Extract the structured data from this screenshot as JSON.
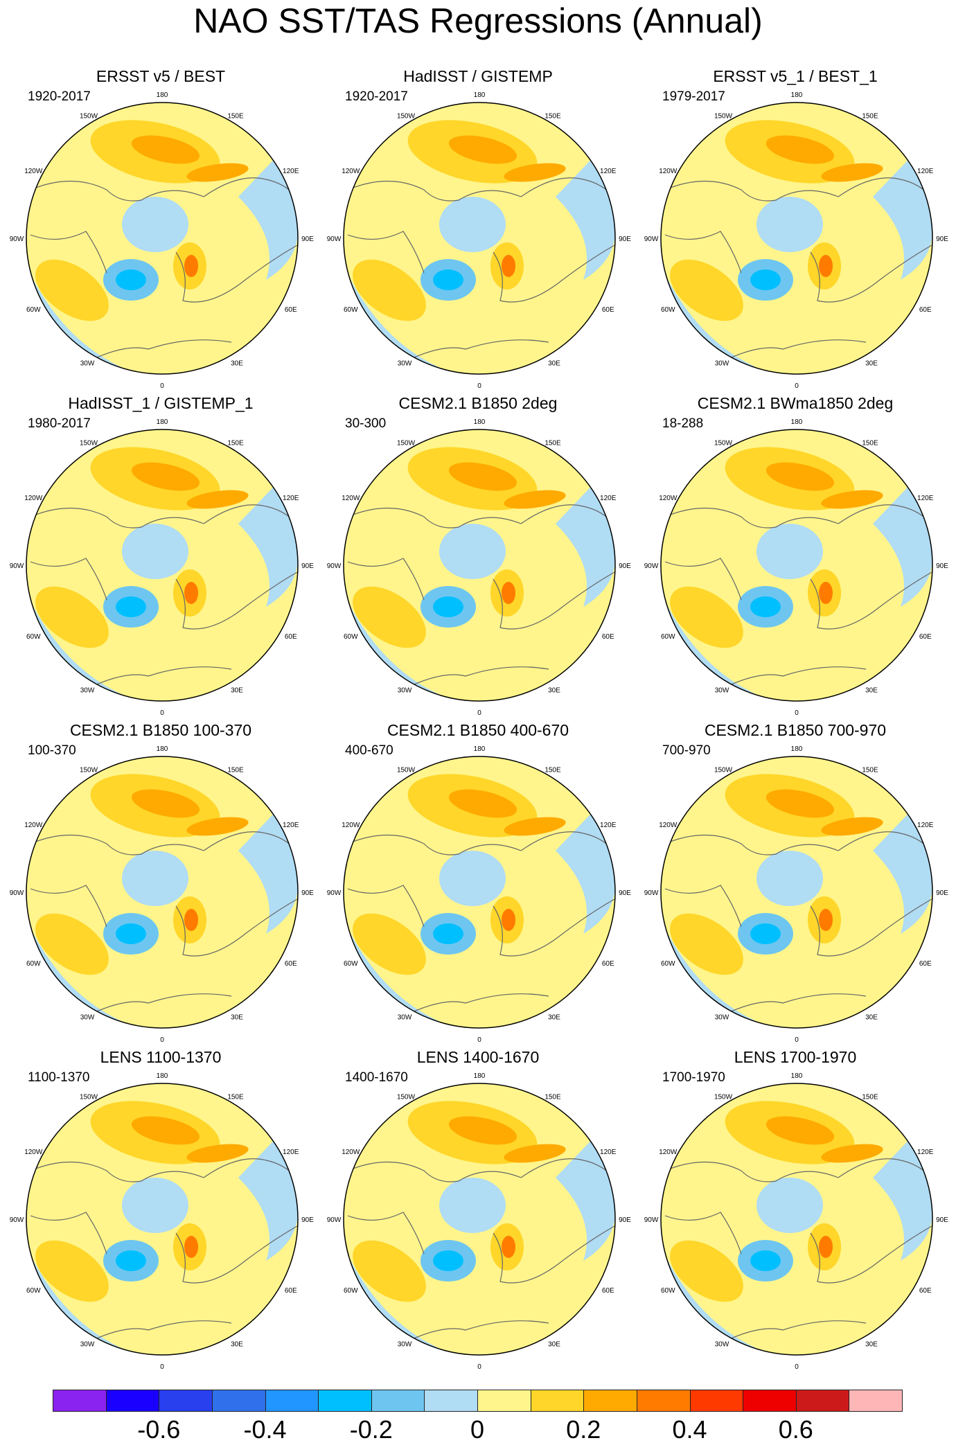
{
  "title": "NAO SST/TAS Regressions (Annual)",
  "panels": [
    {
      "title": "ERSST v5 / BEST",
      "period": "1920-2017"
    },
    {
      "title": "HadISST / GISTEMP",
      "period": "1920-2017"
    },
    {
      "title": "ERSST v5_1 / BEST_1",
      "period": "1979-2017"
    },
    {
      "title": "HadISST_1 / GISTEMP_1",
      "period": "1980-2017"
    },
    {
      "title": "CESM2.1 B1850 2deg",
      "period": "30-300"
    },
    {
      "title": "CESM2.1 BWma1850 2deg",
      "period": "18-288"
    },
    {
      "title": "CESM2.1 B1850 100-370",
      "period": "100-370"
    },
    {
      "title": "CESM2.1 B1850 400-670",
      "period": "400-670"
    },
    {
      "title": "CESM2.1 B1850 700-970",
      "period": "700-970"
    },
    {
      "title": "LENS 1100-1370",
      "period": "1100-1370"
    },
    {
      "title": "LENS 1400-1670",
      "period": "1400-1670"
    },
    {
      "title": "LENS 1700-1970",
      "period": "1700-1970"
    }
  ],
  "longitude_labels": [
    "180",
    "150E",
    "120E",
    "90E",
    "60E",
    "30E",
    "0",
    "30W",
    "60W",
    "90W",
    "120W",
    "150W"
  ],
  "colorbar": {
    "colors": [
      "#8a22f0",
      "#1a00ff",
      "#2840ee",
      "#3070ea",
      "#2196ff",
      "#00bfff",
      "#6ec6f0",
      "#b0dcf4",
      "#fff58c",
      "#ffd629",
      "#ffaa00",
      "#ff7b00",
      "#ff3a00",
      "#ee0000",
      "#cc1a1a",
      "#ffb6b6"
    ],
    "labels": [
      "-0.6",
      "-0.4",
      "-0.2",
      "0",
      "0.2",
      "0.4",
      "0.6"
    ]
  }
}
